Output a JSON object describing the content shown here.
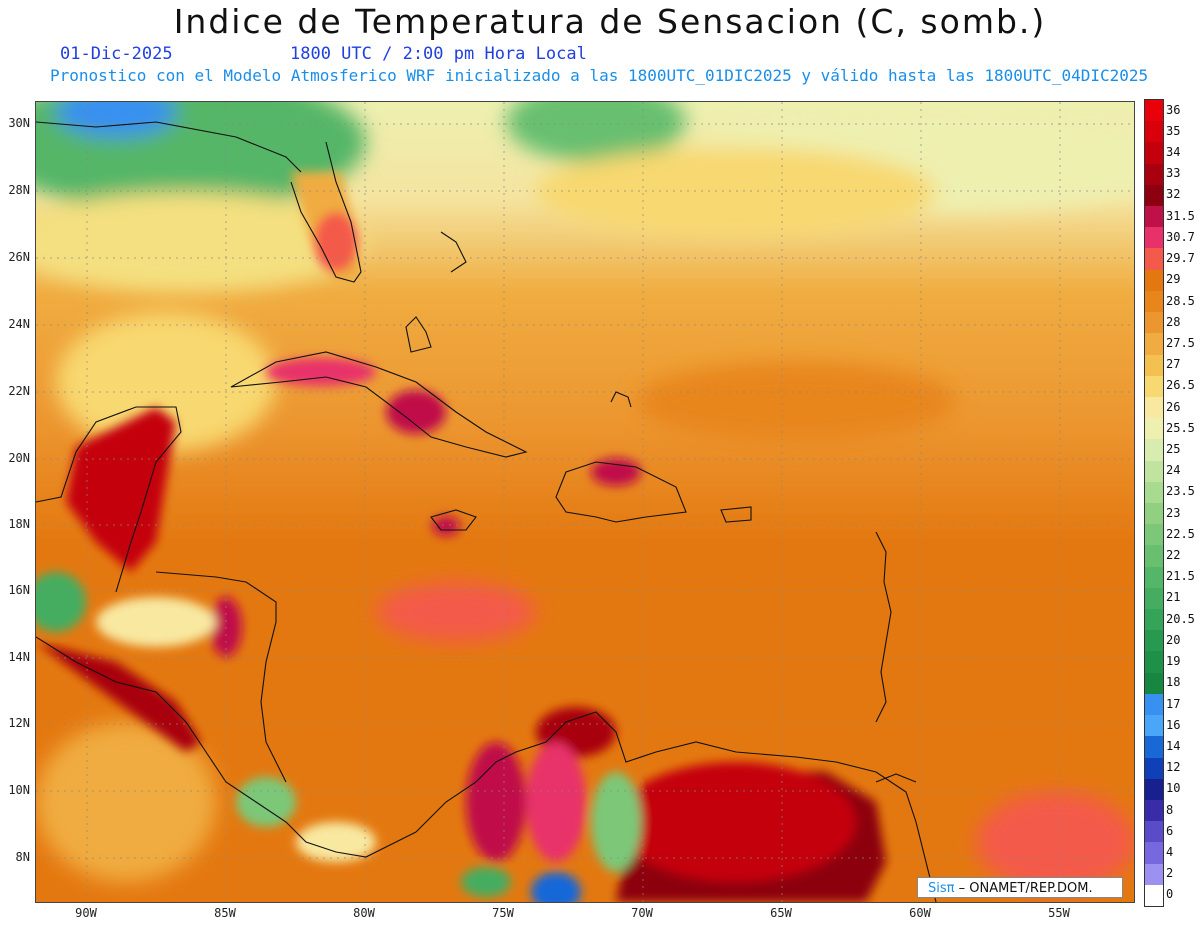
{
  "title": "Indice de Temperatura de Sensacion (C, somb.)",
  "date": "01-Dic-2025",
  "time": "1800 UTC / 2:00 pm Hora Local",
  "forecast": "Pronostico con el Modelo Atmosferico WRF inicializado a las 1800UTC_01DIC2025 y válido hasta las  1800UTC_04DIC2025",
  "lat_labels": [
    "30N",
    "28N",
    "26N",
    "24N",
    "22N",
    "20N",
    "18N",
    "16N",
    "14N",
    "12N",
    "10N",
    "8N"
  ],
  "lon_labels": [
    "90W",
    "85W",
    "80W",
    "75W",
    "70W",
    "65W",
    "60W",
    "55W"
  ],
  "colorbar": {
    "labels": [
      "36",
      "35",
      "34",
      "33",
      "32",
      "31.5",
      "30.7",
      "29.7",
      "29",
      "28.5",
      "28",
      "27.5",
      "27",
      "26.5",
      "26",
      "25.5",
      "25",
      "24",
      "23.5",
      "23",
      "22.5",
      "22",
      "21.5",
      "21",
      "20.5",
      "20",
      "19",
      "18",
      "17",
      "16",
      "14",
      "12",
      "10",
      "8",
      "6",
      "4",
      "2",
      "0"
    ],
    "colors": [
      "#e8000a",
      "#d8000a",
      "#c4000c",
      "#a8000e",
      "#8c0010",
      "#c0104a",
      "#e8306a",
      "#f45a4a",
      "#e47810",
      "#e8861c",
      "#ec9630",
      "#f0ac40",
      "#f4c050",
      "#f8d870",
      "#f8e8a0",
      "#eef0b0",
      "#d8ecb0",
      "#c0e4a0",
      "#a8da90",
      "#90d080",
      "#7cc878",
      "#68bf70",
      "#54b668",
      "#44ad60",
      "#36a458",
      "#289a50",
      "#1e9048",
      "#168640",
      "#3890f0",
      "#4aa6f8",
      "#1868d8",
      "#1040b8",
      "#182090",
      "#3a2ca8",
      "#5a4cc8",
      "#7868e0",
      "#9c90f0",
      "#ffffff"
    ]
  },
  "credit": {
    "a": "Sisπ",
    "b": " – ONAMET/REP.DOM."
  }
}
